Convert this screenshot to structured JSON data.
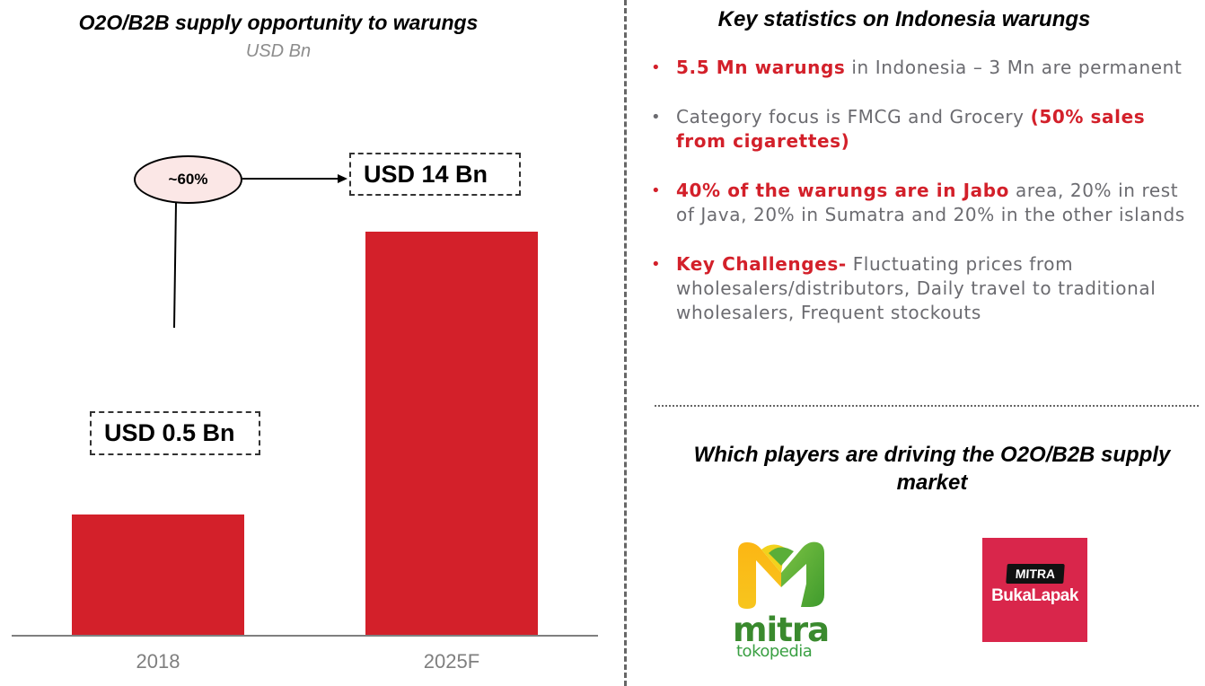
{
  "chart_data": {
    "type": "bar",
    "title": "O2O/B2B supply opportunity to warungs",
    "subtitle": "USD Bn",
    "categories": [
      "2018",
      "2025F"
    ],
    "values": [
      0.5,
      14
    ],
    "value_labels": [
      "USD 0.5 Bn",
      "USD 14 Bn"
    ],
    "xlabel": "",
    "ylabel": "",
    "grid": false,
    "axis_break": true,
    "annotations": [
      {
        "type": "growth-callout",
        "text": "~60%",
        "from": "2018",
        "to": "2025F"
      }
    ],
    "colors": {
      "bar": "#d3202a",
      "axis": "#7f7f7f",
      "callout_fill": "#fbe7e6"
    }
  },
  "stats": {
    "title": "Key statistics on Indonesia warungs",
    "bullets": [
      {
        "highlight": "5.5 Mn warungs",
        "text": " in Indonesia – 3 Mn are permanent",
        "trailing_highlight": "",
        "bullet_color": "red"
      },
      {
        "highlight": "",
        "text": "Category focus is FMCG and Grocery ",
        "trailing_highlight": "(50% sales from cigarettes)",
        "bullet_color": "grey"
      },
      {
        "highlight": "40% of the warungs are in Jabo",
        "text": " area, 20% in rest of Java, 20% in Sumatra and 20% in the other islands",
        "trailing_highlight": "",
        "bullet_color": "red"
      },
      {
        "highlight": "Key Challenges-",
        "text": " Fluctuating prices from wholesalers/distributors, Daily travel to traditional wholesalers, Frequent stockouts",
        "trailing_highlight": "",
        "bullet_color": "red"
      }
    ]
  },
  "players": {
    "title": "Which players are driving the O2O/B2B supply market",
    "logos": [
      {
        "name": "Mitra Tokopedia",
        "word": "mitra",
        "sub": "tokopedia"
      },
      {
        "name": "Mitra Bukalapak",
        "badge": "MITRA",
        "word": "BukaLapak"
      }
    ]
  },
  "colors": {
    "accent": "#d3202a",
    "body_text": "#6b6b70"
  }
}
